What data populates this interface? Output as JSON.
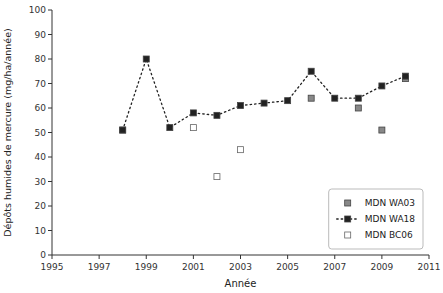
{
  "chart_data": {
    "type": "scatter",
    "title": "",
    "xlabel": "Année",
    "ylabel": "Dépôts humides de mercure (mg/ha/année)",
    "xlim": [
      1995,
      2011
    ],
    "ylim": [
      0,
      100
    ],
    "xticks": [
      1995,
      1997,
      1999,
      2001,
      2003,
      2005,
      2007,
      2009,
      2011
    ],
    "yticks": [
      0,
      10,
      20,
      30,
      40,
      50,
      60,
      70,
      80,
      90,
      100
    ],
    "legend": "lower right",
    "grid": false,
    "series": [
      {
        "name": "MDN WA03",
        "type": "scatter",
        "marker": "square",
        "color": "#888888",
        "x": [
          1998,
          2006,
          2008,
          2009,
          2010
        ],
        "values": [
          51,
          64,
          60,
          51,
          72
        ]
      },
      {
        "name": "MDN WA18",
        "type": "line",
        "marker": "square",
        "line_style": "dotted",
        "color": "#222222",
        "x": [
          1998,
          1999,
          2000,
          2001,
          2002,
          2003,
          2004,
          2005,
          2006,
          2007,
          2008,
          2009,
          2010
        ],
        "values": [
          51,
          80,
          52,
          58,
          57,
          61,
          62,
          63,
          75,
          64,
          64,
          69,
          73
        ]
      },
      {
        "name": "MDN BC06",
        "type": "scatter",
        "marker": "square",
        "color": "#ffffff",
        "x": [
          2001,
          2002,
          2003
        ],
        "values": [
          52,
          32,
          43
        ]
      }
    ]
  }
}
